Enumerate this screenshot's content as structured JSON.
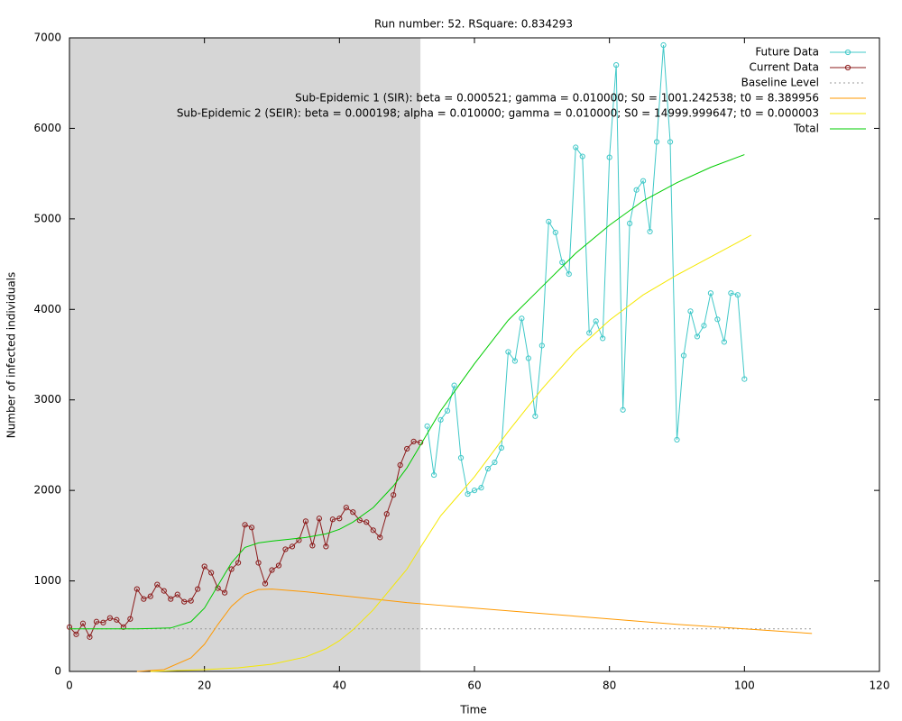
{
  "chart_data": {
    "type": "line",
    "title": "Run number: 52. RSquare: 0.834293",
    "x_label": "Time",
    "y_label": "Number of infected individuals",
    "xlim": [
      0,
      120
    ],
    "xticks": [
      0,
      20,
      40,
      60,
      80,
      100,
      120
    ],
    "ylim": [
      0,
      7000
    ],
    "yticks": [
      0,
      1000,
      2000,
      3000,
      4000,
      5000,
      6000,
      7000
    ],
    "shaded_x_range": [
      0,
      52
    ],
    "shade_color": "#d6d6d6",
    "grid": false,
    "legend_position": "top-right",
    "series": [
      {
        "name": "Future Data",
        "color": "#40c8c8",
        "markers": true,
        "x": [
          53,
          54,
          55,
          56,
          57,
          58,
          59,
          60,
          61,
          62,
          63,
          64,
          65,
          66,
          67,
          68,
          69,
          70,
          71,
          72,
          73,
          74,
          75,
          76,
          77,
          78,
          79,
          80,
          81,
          82,
          83,
          84,
          85,
          86,
          87,
          88,
          89,
          90,
          91,
          92,
          93,
          94,
          95,
          96,
          97,
          98,
          99,
          100
        ],
        "values": [
          2710,
          2170,
          2780,
          2880,
          3160,
          2360,
          1960,
          2000,
          2030,
          2240,
          2310,
          2470,
          3530,
          3430,
          3900,
          3460,
          2820,
          3600,
          4970,
          4850,
          4520,
          4390,
          5790,
          5690,
          3740,
          3870,
          3680,
          5680,
          6700,
          2890,
          4950,
          5320,
          5420,
          4860,
          5850,
          6920,
          5850,
          2560,
          3490,
          3980,
          3700,
          3820,
          4180,
          3890,
          3640,
          4180,
          4160,
          3230
        ]
      },
      {
        "name": "Current Data",
        "color": "#8b1a1a",
        "markers": true,
        "x": [
          0,
          1,
          2,
          3,
          4,
          5,
          6,
          7,
          8,
          9,
          10,
          11,
          12,
          13,
          14,
          15,
          16,
          17,
          18,
          19,
          20,
          21,
          22,
          23,
          24,
          25,
          26,
          27,
          28,
          29,
          30,
          31,
          32,
          33,
          34,
          35,
          36,
          37,
          38,
          39,
          40,
          41,
          42,
          43,
          44,
          45,
          46,
          47,
          48,
          49,
          50,
          51,
          52
        ],
        "values": [
          490,
          410,
          530,
          380,
          550,
          540,
          590,
          570,
          490,
          580,
          910,
          800,
          830,
          960,
          890,
          800,
          850,
          770,
          780,
          910,
          1160,
          1090,
          920,
          870,
          1130,
          1200,
          1620,
          1590,
          1200,
          970,
          1120,
          1170,
          1350,
          1380,
          1450,
          1660,
          1390,
          1690,
          1380,
          1680,
          1690,
          1810,
          1760,
          1670,
          1650,
          1560,
          1480,
          1740,
          1950,
          2280,
          2460,
          2540,
          2530
        ]
      },
      {
        "name": "Baseline Level",
        "color": "#999999",
        "dashed": true,
        "x": [
          0,
          110
        ],
        "values": [
          470,
          470
        ]
      },
      {
        "name": "Sub-Epidemic 1 (SIR): beta = 0.000521; gamma = 0.010000; S0 = 1001.242538; t0 = 8.389956",
        "color": "#ff9900",
        "dashed": false,
        "x": [
          10,
          14,
          18,
          20,
          22,
          24,
          26,
          28,
          30,
          35,
          40,
          45,
          50,
          55,
          60,
          70,
          80,
          90,
          100,
          110
        ],
        "values": [
          0,
          20,
          150,
          300,
          520,
          720,
          850,
          905,
          910,
          880,
          840,
          800,
          760,
          730,
          700,
          640,
          580,
          520,
          470,
          420
        ]
      },
      {
        "name": "Sub-Epidemic 2 (SEIR): beta = 0.000198; alpha = 0.010000; gamma = 0.010000; S0 = 14999.999647; t0 = 0.000003",
        "color": "#f5e800",
        "dashed": false,
        "x": [
          12,
          20,
          25,
          30,
          35,
          38,
          40,
          42,
          45,
          48,
          50,
          52,
          55,
          60,
          65,
          70,
          75,
          80,
          85,
          90,
          95,
          101
        ],
        "values": [
          0,
          20,
          40,
          80,
          160,
          250,
          340,
          460,
          680,
          950,
          1130,
          1370,
          1720,
          2150,
          2650,
          3120,
          3540,
          3880,
          4160,
          4380,
          4580,
          4820
        ]
      },
      {
        "name": "Total",
        "color": "#00cc00",
        "dashed": false,
        "x": [
          0,
          10,
          15,
          18,
          20,
          22,
          24,
          26,
          28,
          30,
          35,
          38,
          40,
          42,
          45,
          48,
          50,
          52,
          55,
          60,
          65,
          70,
          75,
          80,
          85,
          90,
          95,
          100
        ],
        "values": [
          470,
          470,
          480,
          550,
          700,
          950,
          1200,
          1370,
          1420,
          1440,
          1480,
          1520,
          1570,
          1650,
          1810,
          2050,
          2250,
          2500,
          2880,
          3400,
          3880,
          4250,
          4620,
          4930,
          5200,
          5400,
          5570,
          5710
        ]
      }
    ]
  }
}
